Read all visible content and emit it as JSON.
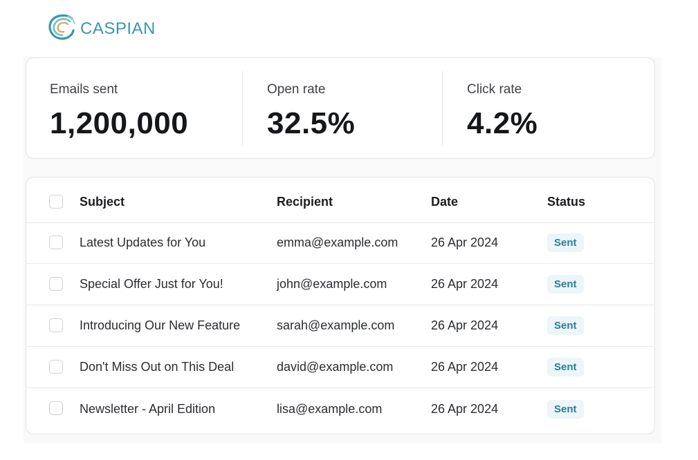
{
  "brand": {
    "name": "CASPIAN",
    "accent_color": "#3a96ae"
  },
  "stats": [
    {
      "label": "Emails sent",
      "value": "1,200,000"
    },
    {
      "label": "Open rate",
      "value": "32.5%"
    },
    {
      "label": "Click rate",
      "value": "4.2%"
    }
  ],
  "table": {
    "columns": {
      "subject": "Subject",
      "recipient": "Recipient",
      "date": "Date",
      "status": "Status"
    },
    "rows": [
      {
        "subject": "Latest Updates for You",
        "recipient": "emma@example.com",
        "date": "26 Apr 2024",
        "status": "Sent"
      },
      {
        "subject": "Special Offer Just for You!",
        "recipient": "john@example.com",
        "date": "26 Apr 2024",
        "status": "Sent"
      },
      {
        "subject": "Introducing Our New Feature",
        "recipient": "sarah@example.com",
        "date": "26 Apr 2024",
        "status": "Sent"
      },
      {
        "subject": "Don't Miss Out on This Deal",
        "recipient": "david@example.com",
        "date": "26 Apr 2024",
        "status": "Sent"
      },
      {
        "subject": "Newsletter - April Edition",
        "recipient": "lisa@example.com",
        "date": "26 Apr 2024",
        "status": "Sent"
      }
    ]
  },
  "icons": {
    "logo": "wave-logo-icon",
    "checkbox": "checkbox-icon"
  },
  "colors": {
    "status_sent_bg": "#ecf5f8",
    "status_sent_text": "#2c7d93"
  }
}
